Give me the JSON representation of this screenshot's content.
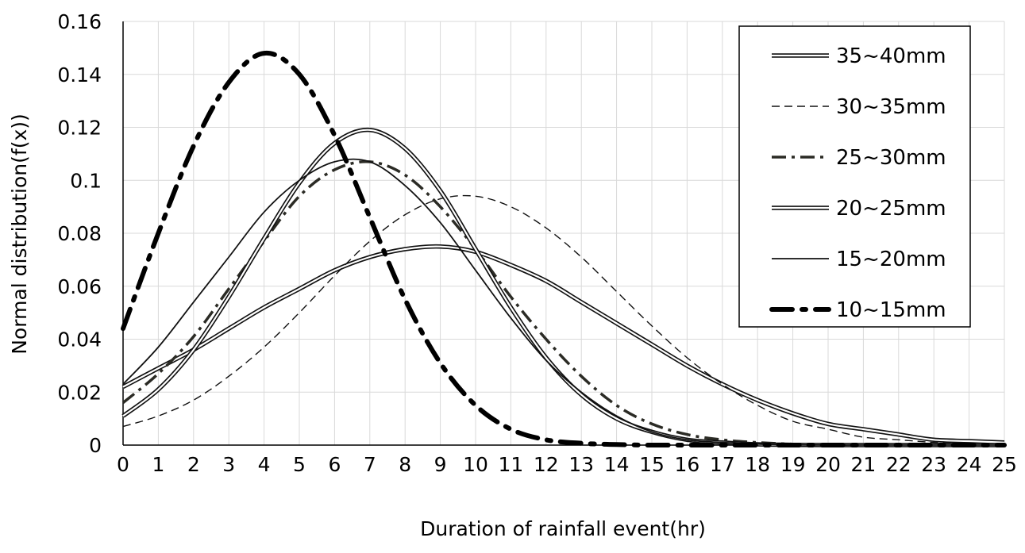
{
  "chart_data": {
    "type": "line",
    "xlabel": "Duration of rainfall event(hr)",
    "ylabel": "Normal distribution(f(x))",
    "xlim": [
      0,
      25
    ],
    "ylim": [
      0,
      0.16
    ],
    "x_ticks": [
      0,
      1,
      2,
      3,
      4,
      5,
      6,
      7,
      8,
      9,
      10,
      11,
      12,
      13,
      14,
      15,
      16,
      17,
      18,
      19,
      20,
      21,
      22,
      23,
      24,
      25
    ],
    "y_ticks": [
      0,
      0.02,
      0.04,
      0.06,
      0.08,
      0.1,
      0.12,
      0.14,
      0.16
    ],
    "y_tick_labels": [
      "0",
      "0.02",
      "0.04",
      "0.06",
      "0.08",
      "0.1",
      "0.12",
      "0.14",
      "0.16"
    ],
    "grid": true,
    "legend_position": "top-right",
    "x": [
      0,
      1,
      2,
      3,
      4,
      5,
      6,
      7,
      8,
      9,
      10,
      11,
      12,
      13,
      14,
      15,
      16,
      17,
      18,
      19,
      20,
      21,
      22,
      23,
      24,
      25
    ],
    "series": [
      {
        "name": "35~40mm",
        "style": "double",
        "values": [
          0.022,
          0.029,
          0.036,
          0.044,
          0.052,
          0.059,
          0.066,
          0.071,
          0.074,
          0.075,
          0.073,
          0.068,
          0.062,
          0.054,
          0.046,
          0.038,
          0.03,
          0.023,
          0.017,
          0.012,
          0.008,
          0.006,
          0.004,
          0.002,
          0.0015,
          0.001
        ]
      },
      {
        "name": "30~35mm",
        "style": "dashed",
        "values": [
          0.007,
          0.011,
          0.017,
          0.026,
          0.037,
          0.05,
          0.064,
          0.077,
          0.087,
          0.093,
          0.094,
          0.09,
          0.082,
          0.071,
          0.058,
          0.045,
          0.033,
          0.023,
          0.015,
          0.009,
          0.006,
          0.003,
          0.002,
          0.001,
          0.0005,
          0.0002
        ]
      },
      {
        "name": "25~30mm",
        "style": "dashdot",
        "values": [
          0.016,
          0.027,
          0.041,
          0.059,
          0.077,
          0.094,
          0.104,
          0.107,
          0.102,
          0.09,
          0.074,
          0.056,
          0.04,
          0.026,
          0.015,
          0.008,
          0.004,
          0.002,
          0.001,
          0.0004,
          0.0001,
          0,
          0,
          0,
          0,
          0
        ]
      },
      {
        "name": "20~25mm",
        "style": "double",
        "values": [
          0.011,
          0.021,
          0.036,
          0.056,
          0.078,
          0.099,
          0.114,
          0.119,
          0.112,
          0.096,
          0.074,
          0.052,
          0.033,
          0.019,
          0.01,
          0.005,
          0.002,
          0.001,
          0.0003,
          0.0001,
          0,
          0,
          0,
          0,
          0,
          0
        ]
      },
      {
        "name": "15~20mm",
        "style": "solid",
        "values": [
          0.023,
          0.037,
          0.054,
          0.071,
          0.088,
          0.1,
          0.107,
          0.107,
          0.098,
          0.084,
          0.066,
          0.048,
          0.032,
          0.02,
          0.011,
          0.005,
          0.002,
          0.001,
          0.0004,
          0.0001,
          0,
          0,
          0,
          0,
          0,
          0
        ]
      },
      {
        "name": "10~15mm",
        "style": "dashdot-heavy",
        "values": [
          0.044,
          0.08,
          0.113,
          0.137,
          0.148,
          0.14,
          0.117,
          0.086,
          0.055,
          0.031,
          0.015,
          0.006,
          0.002,
          0.0007,
          0.0002,
          0,
          0,
          0,
          0,
          0,
          0,
          0,
          0,
          0,
          0,
          0
        ]
      }
    ]
  }
}
